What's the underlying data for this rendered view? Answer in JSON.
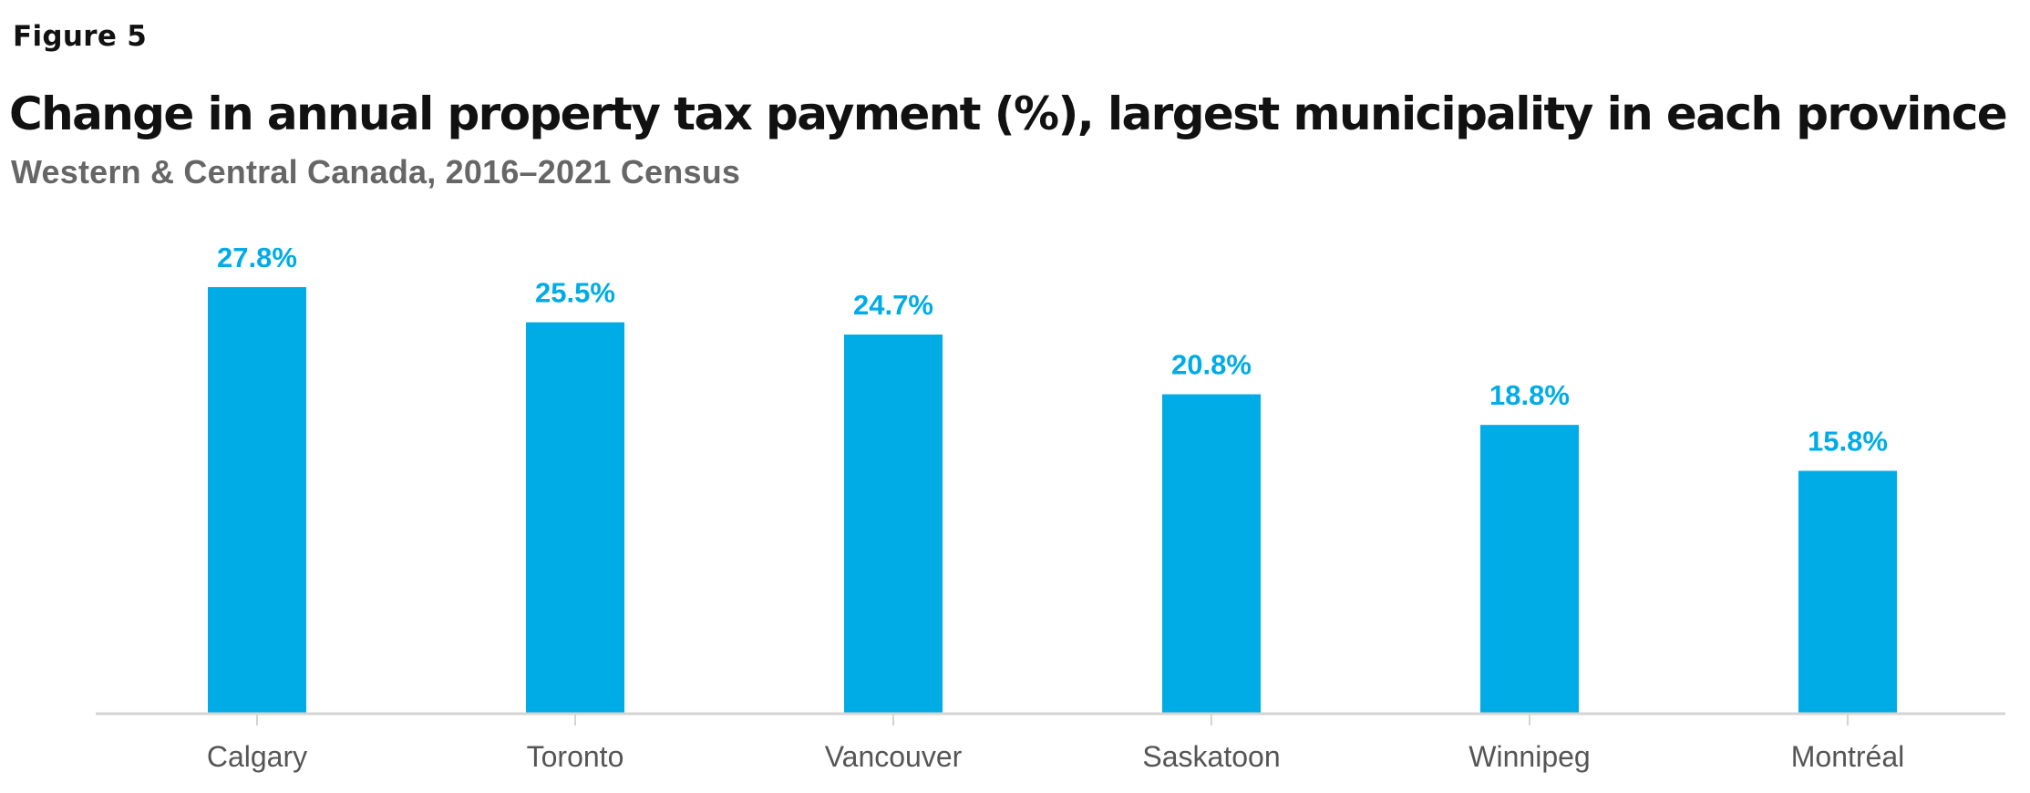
{
  "figure_label": "Figure 5",
  "chart_data": {
    "type": "bar",
    "title": "Change in annual property tax payment (%), largest municipality in each province",
    "subtitle": "Western & Central Canada, 2016–2021 Census",
    "categories": [
      "Calgary",
      "Toronto",
      "Vancouver",
      "Saskatoon",
      "Winnipeg",
      "Montréal"
    ],
    "values": [
      27.8,
      25.5,
      24.7,
      20.8,
      18.8,
      15.8
    ],
    "value_labels": [
      "27.8%",
      "25.5%",
      "24.7%",
      "20.8%",
      "18.8%",
      "15.8%"
    ],
    "ylim": [
      0,
      30
    ],
    "grid": false,
    "bar_color": "#00ACE6",
    "label_color": "#00ACE6",
    "axis_color": "#D4D4D4"
  }
}
